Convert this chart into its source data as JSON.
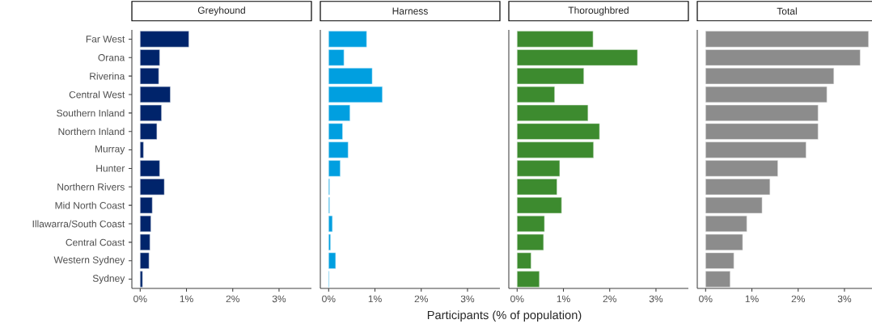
{
  "chart_data": [
    {
      "type": "bar",
      "orientation": "horizontal",
      "title": "Greyhound",
      "color": "#00246b",
      "categories": [
        "Far West",
        "Orana",
        "Riverina",
        "Central West",
        "Southern Inland",
        "Northern Inland",
        "Murray",
        "Hunter",
        "Northern Rivers",
        "Mid North Coast",
        "Illawarra/South Coast",
        "Central Coast",
        "Western Sydney",
        "Sydney"
      ],
      "values": [
        1.05,
        0.42,
        0.4,
        0.65,
        0.46,
        0.36,
        0.07,
        0.42,
        0.52,
        0.26,
        0.23,
        0.21,
        0.19,
        0.05
      ],
      "xlim": [
        -0.18,
        3.7
      ],
      "xticks": [
        {
          "value": 0,
          "label": "0%"
        },
        {
          "value": 1,
          "label": "1%"
        },
        {
          "value": 2,
          "label": "2%"
        },
        {
          "value": 3,
          "label": "3%"
        }
      ]
    },
    {
      "type": "bar",
      "orientation": "horizontal",
      "title": "Harness",
      "color": "#009fe0",
      "tick_labels": "x",
      "xlabel": "Participants (% of population)",
      "categories": [
        null,
        null,
        null,
        null,
        null,
        null,
        null,
        null,
        null,
        null,
        null,
        null,
        null,
        null
      ],
      "values": [
        0.82,
        0.33,
        0.94,
        1.16,
        0.46,
        0.3,
        0.42,
        0.25,
        0.02,
        0.02,
        0.08,
        0.04,
        0.15,
        0.01
      ],
      "xlim": [
        -0.18,
        3.7
      ],
      "xticks": [
        {
          "value": 0,
          "label": "0%"
        },
        {
          "value": 1,
          "label": "1%"
        },
        {
          "value": 2,
          "label": "2%"
        },
        {
          "value": 3,
          "label": "3%"
        }
      ]
    },
    {
      "type": "bar",
      "orientation": "horizontal",
      "title": "Thoroughbred",
      "color": "#3d8b2f",
      "tick_labels": "x",
      "categories": [
        null,
        null,
        null,
        null,
        null,
        null,
        null,
        null,
        null,
        null,
        null,
        null,
        null,
        null
      ],
      "values": [
        1.64,
        2.6,
        1.44,
        0.81,
        1.53,
        1.78,
        1.65,
        0.92,
        0.86,
        0.96,
        0.59,
        0.57,
        0.3,
        0.48
      ],
      "xlim": [
        -0.18,
        3.7
      ],
      "xticks": [
        {
          "value": 0,
          "label": "0%"
        },
        {
          "value": 1,
          "label": "1%"
        },
        {
          "value": 2,
          "label": "2%"
        },
        {
          "value": 3,
          "label": "3%"
        }
      ]
    },
    {
      "type": "bar",
      "orientation": "horizontal",
      "title": "Total",
      "color": "#8c8c8c",
      "tick_labels": "x",
      "categories": [
        null,
        null,
        null,
        null,
        null,
        null,
        null,
        null,
        null,
        null,
        null,
        null,
        null,
        null
      ],
      "values": [
        3.52,
        3.34,
        2.77,
        2.62,
        2.43,
        2.43,
        2.17,
        1.56,
        1.39,
        1.22,
        0.89,
        0.8,
        0.61,
        0.53
      ],
      "xlim": [
        -0.18,
        3.7
      ],
      "xticks": [
        {
          "value": 0,
          "label": "0%"
        },
        {
          "value": 1,
          "label": "1%"
        },
        {
          "value": 2,
          "label": "2%"
        },
        {
          "value": 3,
          "label": "3%"
        }
      ]
    }
  ]
}
